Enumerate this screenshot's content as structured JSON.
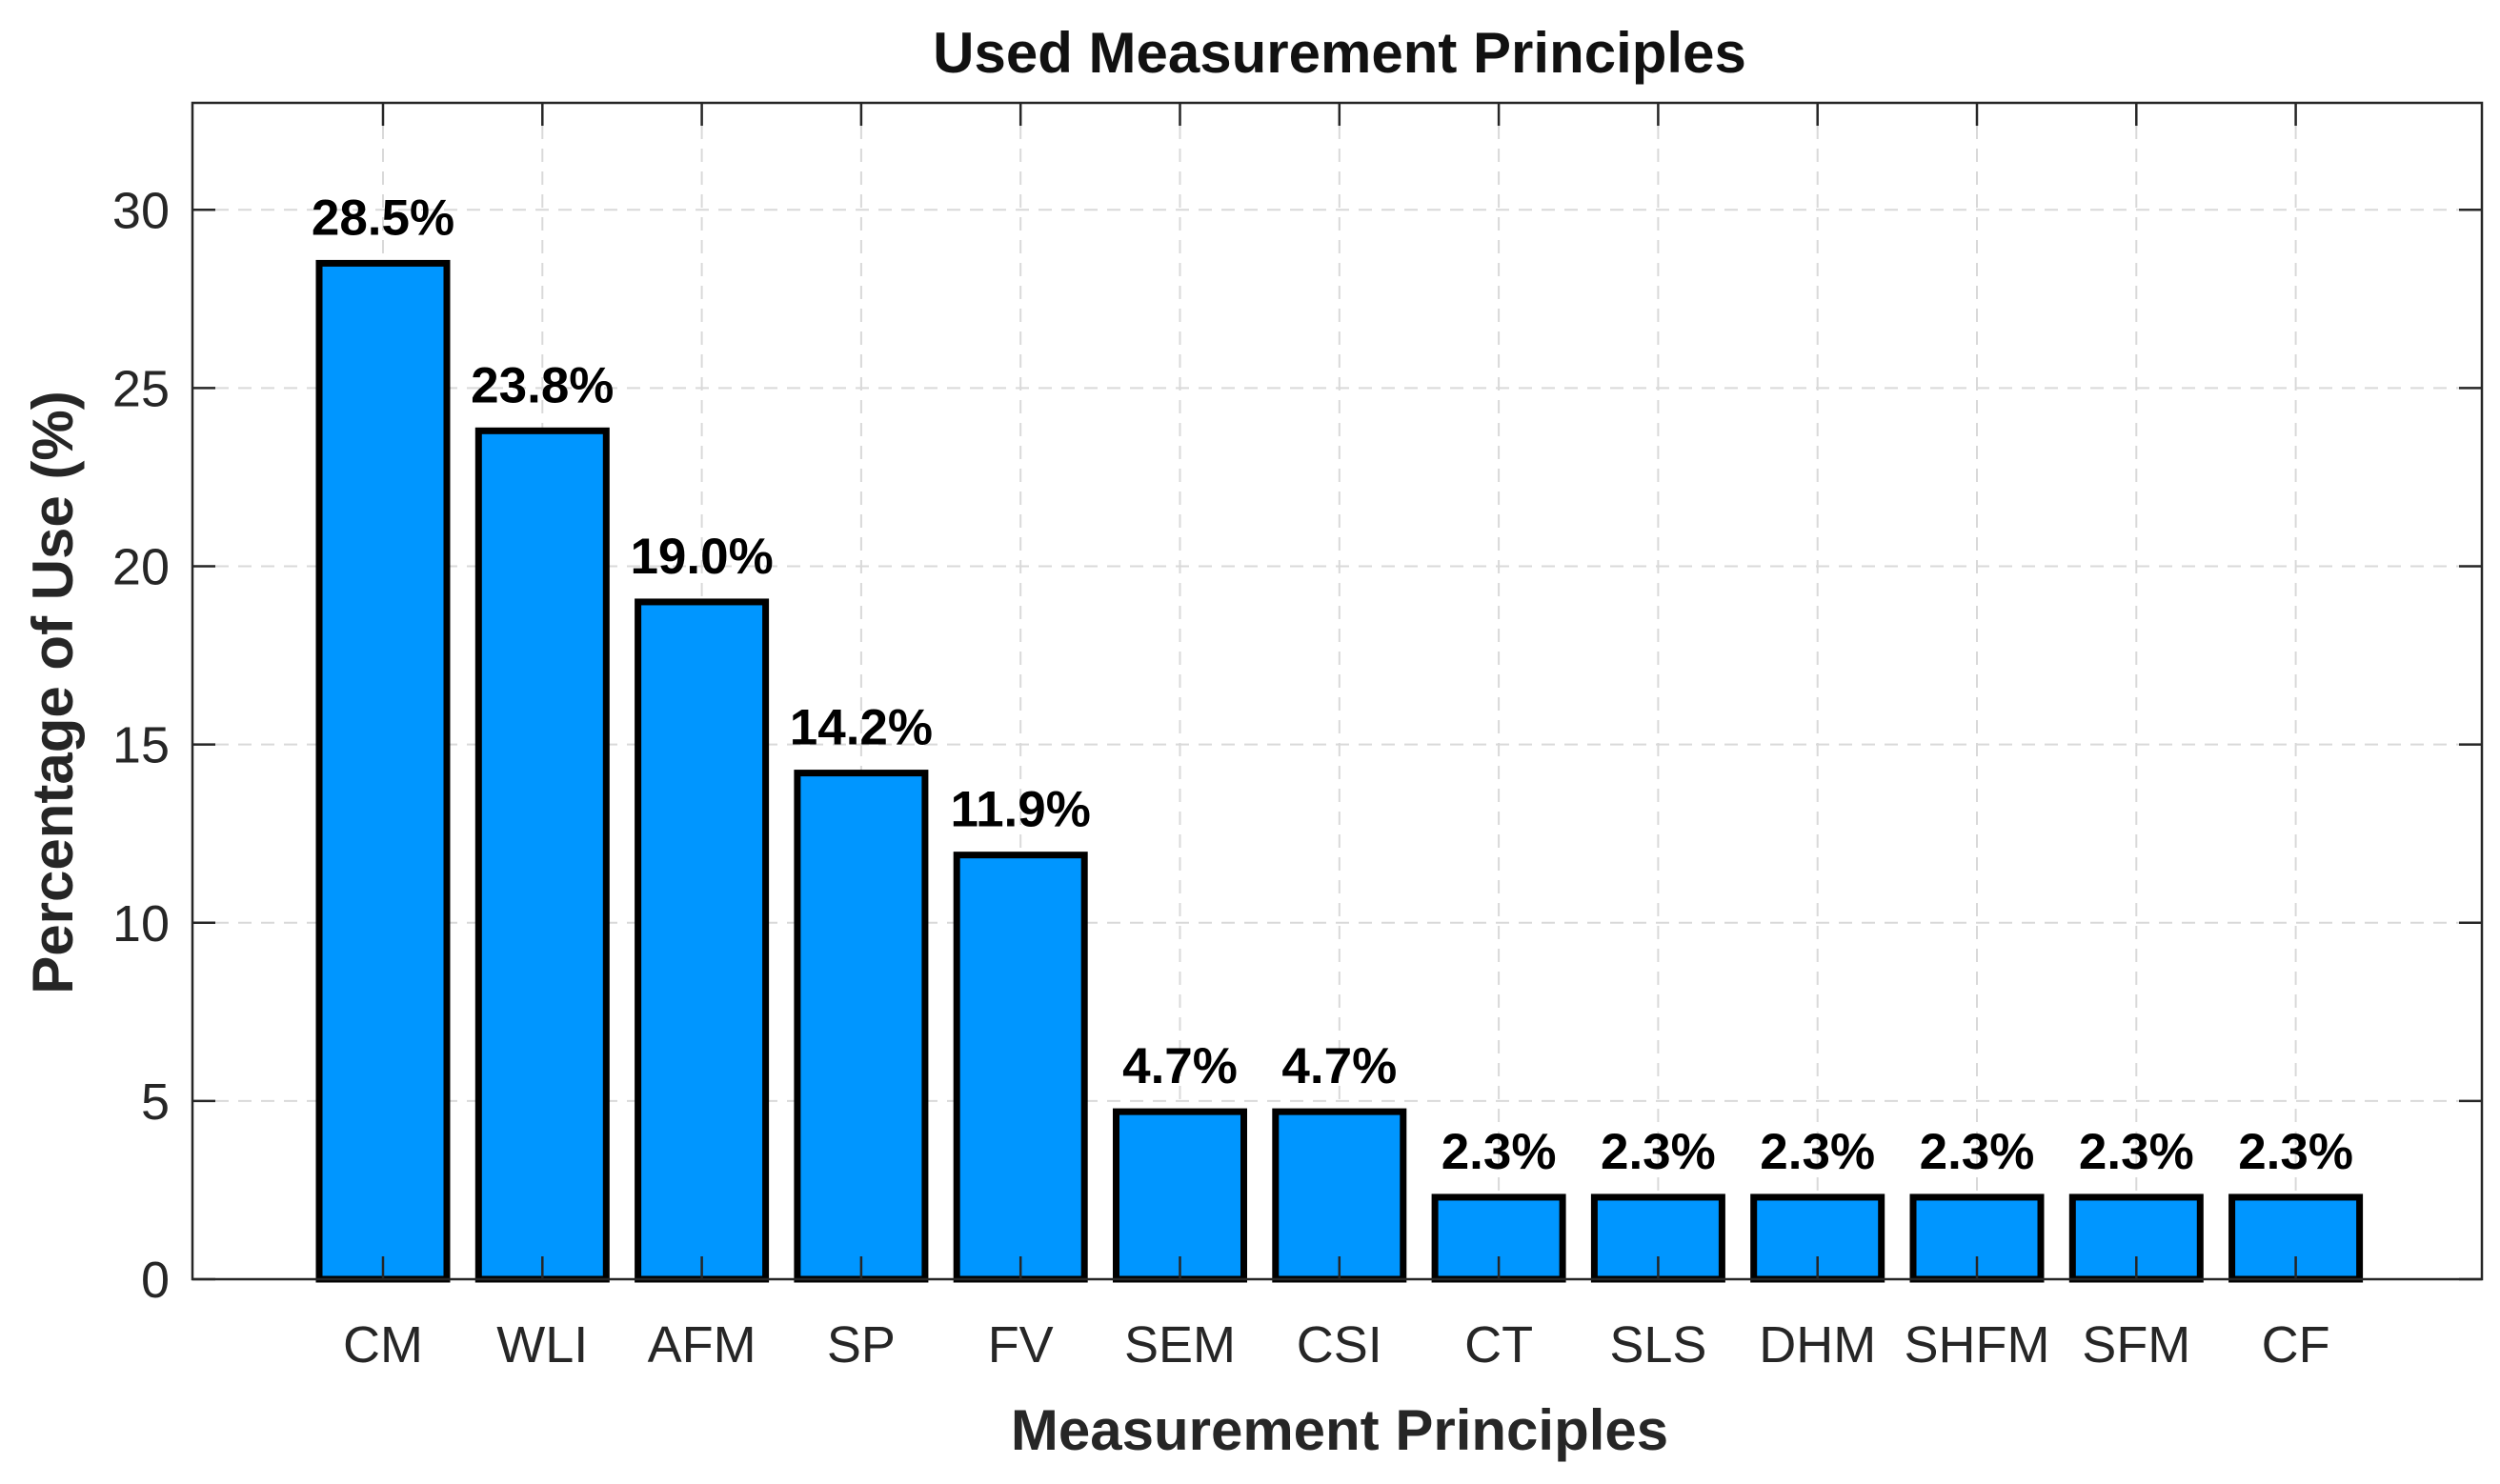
{
  "chart_data": {
    "type": "bar",
    "title": "Used Measurement Principles",
    "xlabel": "Measurement Principles",
    "ylabel": "Percentage of Use (%)",
    "categories": [
      "CM",
      "WLI",
      "AFM",
      "SP",
      "FV",
      "SEM",
      "CSI",
      "CT",
      "SLS",
      "DHM",
      "SHFM",
      "SFM",
      "CF"
    ],
    "values": [
      28.5,
      23.8,
      19.0,
      14.2,
      11.9,
      4.7,
      4.7,
      2.3,
      2.3,
      2.3,
      2.3,
      2.3,
      2.3
    ],
    "data_labels": [
      "28.5%",
      "23.8%",
      "19.0%",
      "14.2%",
      "11.9%",
      "4.7%",
      "4.7%",
      "2.3%",
      "2.3%",
      "2.3%",
      "2.3%",
      "2.3%",
      "2.3%"
    ],
    "yticks": [
      0,
      5,
      10,
      15,
      20,
      25,
      30
    ],
    "ylim": [
      0,
      33
    ],
    "grid": true,
    "bar_color": "#0096ff",
    "edge_color": "#000000"
  }
}
